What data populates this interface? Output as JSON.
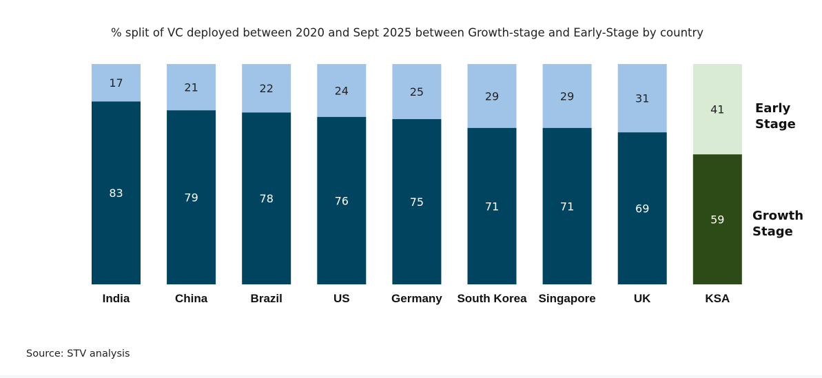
{
  "chart_data": {
    "type": "bar",
    "stacked": true,
    "title": "% split of VC deployed between 2020 and Sept 2025 between Growth-stage and Early-Stage by country",
    "categories": [
      "India",
      "China",
      "Brazil",
      "US",
      "Germany",
      "South Korea",
      "Singapore",
      "UK",
      "KSA"
    ],
    "series": [
      {
        "name": "Growth Stage",
        "values": [
          83,
          79,
          78,
          76,
          75,
          71,
          71,
          69,
          59
        ],
        "color": "#00445f",
        "highlight_color": "#2c4b17",
        "label_color": "#ffffff"
      },
      {
        "name": "Early Stage",
        "values": [
          17,
          21,
          22,
          24,
          25,
          29,
          29,
          31,
          41
        ],
        "color": "#a0c4e8",
        "highlight_color": "#d9ebd5",
        "label_color": "#222222"
      }
    ],
    "highlight_category": "KSA",
    "ylim": [
      0,
      100
    ],
    "grid": false,
    "legend": {
      "placement": "right",
      "early_lines": [
        "Early",
        "Stage"
      ],
      "growth_lines": [
        "Growth",
        "Stage"
      ]
    },
    "source": "Source: STV analysis"
  }
}
